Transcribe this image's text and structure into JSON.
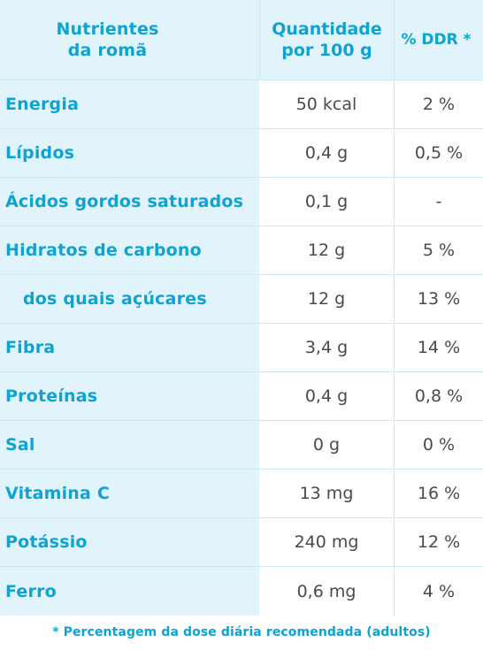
{
  "header": {
    "col1_line1": "Nutrientes",
    "col1_line2": "da romã",
    "col2_line1": "Quantidade",
    "col2_line2": "por 100 g",
    "col3": "% DDR *"
  },
  "rows": [
    {
      "nutrient": "Energia",
      "amount": "50 kcal",
      "ddr": "2 %"
    },
    {
      "nutrient": "Lípidos",
      "amount": "0,4 g",
      "ddr": "0,5 %"
    },
    {
      "nutrient": "Ácidos gordos saturados",
      "amount": "0,1 g",
      "ddr": "-"
    },
    {
      "nutrient": "Hidratos de carbono",
      "amount": "12 g",
      "ddr": "5 %"
    },
    {
      "nutrient": "dos quais açúcares",
      "amount": "12 g",
      "ddr": "13 %"
    },
    {
      "nutrient": "Fibra",
      "amount": "3,4 g",
      "ddr": "14 %"
    },
    {
      "nutrient": "Proteínas",
      "amount": "0,4 g",
      "ddr": "0,8 %"
    },
    {
      "nutrient": "Sal",
      "amount": "0 g",
      "ddr": "0 %"
    },
    {
      "nutrient": "Vitamina C",
      "amount": "13 mg",
      "ddr": "16 %"
    },
    {
      "nutrient": "Potássio",
      "amount": "240 mg",
      "ddr": "12 %"
    },
    {
      "nutrient": "Ferro",
      "amount": "0,6 mg",
      "ddr": "4 %"
    }
  ],
  "footnote": "* Percentagem da dose diária recomendada (adultos)",
  "colors": {
    "accent": "#0fa3d1",
    "header_bg": "#e1f3fb",
    "text": "#4a4a4a",
    "border": "#cfe8f3"
  }
}
